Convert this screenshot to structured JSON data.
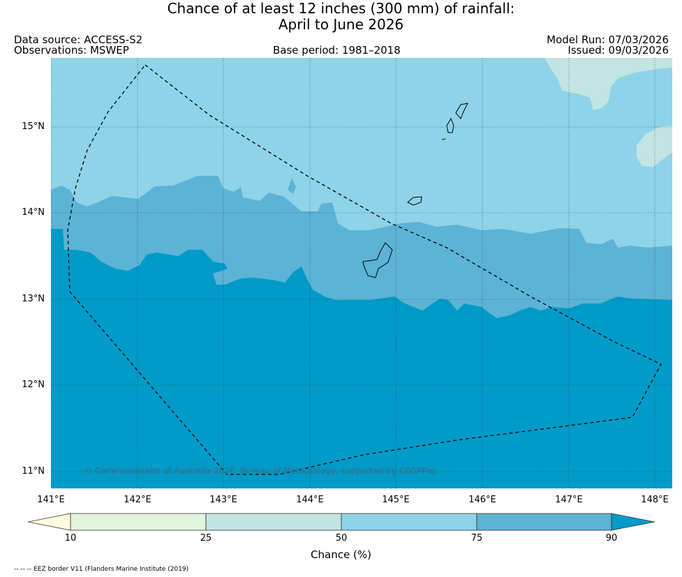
{
  "title": {
    "line1": "Chance of at least 12 inches (300  mm) of rainfall:",
    "line2": "April to June 2026"
  },
  "meta": {
    "data_source": "Data source: ACCESS-S2",
    "observations": "Observations: MSWEP",
    "base_period": "Base period: 1981–2018",
    "model_run": "Model Run: 07/03/2026",
    "issued": "Issued: 09/03/2026"
  },
  "map": {
    "lon_labels": [
      "141°E",
      "142°E",
      "143°E",
      "144°E",
      "145°E",
      "146°E",
      "147°E",
      "148°E"
    ],
    "lat_labels": [
      "15°N",
      "14°N",
      "13°N",
      "12°N",
      "11°N"
    ],
    "copyright": "© Commonwealth of Australia 2026, Bureau of Meteorology, supported by COSPPac",
    "colors": {
      "c25_50": "#c2e4e3",
      "c50_75": "#8ed3e8",
      "c75_90": "#5cb3d5",
      "c90plus": "#009bc8",
      "c10_25": "#e0f5dc",
      "below10": "#fffbe0"
    }
  },
  "colorbar": {
    "ticks": [
      "10",
      "25",
      "50",
      "75",
      "90"
    ],
    "label": "Chance (%)"
  },
  "footer": {
    "eez_note": "-- -- -- EEZ border V11 (Flanders Marine Institute (2019)"
  }
}
